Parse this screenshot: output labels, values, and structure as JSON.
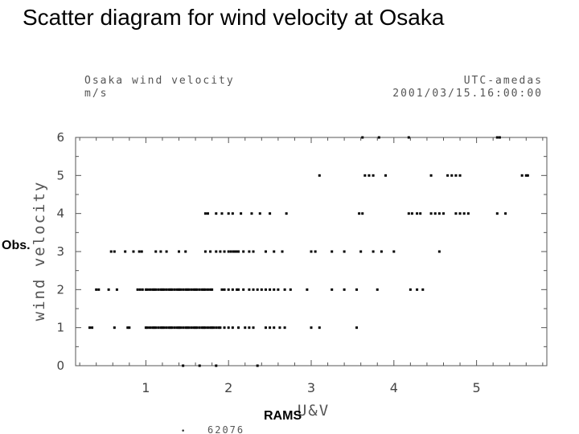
{
  "slide": {
    "title": "Scatter diagram for wind velocity at Osaka"
  },
  "header": {
    "left_line1": "Osaka wind velocity",
    "left_line2": "m/s",
    "right_line1": "UTC-amedas",
    "right_line2": "2001/03/15.16:00:00"
  },
  "labels": {
    "ylabel_plot": "wind velocity",
    "xlabel_plot": "U&V",
    "ylabel_overlay": "Obs.",
    "xlabel_overlay": "RAMS",
    "count_marker": "•",
    "count_text": "62076"
  },
  "chart_data": {
    "type": "scatter",
    "xlim": [
      0.15,
      5.85
    ],
    "ylim": [
      0,
      6
    ],
    "xticks": [
      "1",
      "2",
      "3",
      "4",
      "5"
    ],
    "yticks": [
      "0",
      "1",
      "2",
      "3",
      "4",
      "5",
      "6"
    ],
    "grid": false,
    "points_by_y": [
      {
        "y": 0,
        "x": [
          1.45,
          1.65,
          1.85,
          2.35
        ]
      },
      {
        "y": 1,
        "x": [
          0.32,
          0.35,
          0.62,
          0.78,
          0.8,
          1.0,
          1.02,
          1.05,
          1.08,
          1.1,
          1.12,
          1.15,
          1.18,
          1.2,
          1.22,
          1.25,
          1.28,
          1.3,
          1.32,
          1.35,
          1.38,
          1.4,
          1.42,
          1.45,
          1.48,
          1.5,
          1.52,
          1.55,
          1.58,
          1.6,
          1.62,
          1.65,
          1.68,
          1.7,
          1.72,
          1.75,
          1.78,
          1.8,
          1.82,
          1.85,
          1.88,
          1.9,
          1.95,
          2.0,
          2.05,
          2.12,
          2.2,
          2.25,
          2.3,
          2.45,
          2.5,
          2.55,
          2.62,
          2.68,
          3.0,
          3.1,
          3.55
        ]
      },
      {
        "y": 2,
        "x": [
          0.4,
          0.43,
          0.55,
          0.65,
          0.9,
          0.93,
          0.96,
          1.0,
          1.02,
          1.05,
          1.08,
          1.1,
          1.12,
          1.15,
          1.18,
          1.2,
          1.22,
          1.25,
          1.28,
          1.3,
          1.32,
          1.35,
          1.38,
          1.4,
          1.42,
          1.45,
          1.48,
          1.5,
          1.52,
          1.55,
          1.58,
          1.6,
          1.62,
          1.65,
          1.68,
          1.7,
          1.72,
          1.75,
          1.78,
          1.8,
          1.92,
          1.95,
          2.0,
          2.05,
          2.1,
          2.12,
          2.18,
          2.25,
          2.3,
          2.35,
          2.4,
          2.45,
          2.5,
          2.55,
          2.6,
          2.68,
          2.75,
          2.95,
          3.25,
          3.4,
          3.55,
          3.8,
          4.2,
          4.28,
          4.35
        ]
      },
      {
        "y": 3,
        "x": [
          0.58,
          0.62,
          0.75,
          0.85,
          0.92,
          0.95,
          1.12,
          1.18,
          1.25,
          1.4,
          1.48,
          1.72,
          1.78,
          1.85,
          1.9,
          1.95,
          2.0,
          2.03,
          2.06,
          2.08,
          2.1,
          2.12,
          2.18,
          2.25,
          2.3,
          2.45,
          2.55,
          2.65,
          3.0,
          3.05,
          3.25,
          3.4,
          3.6,
          3.75,
          3.85,
          4.0,
          4.55
        ]
      },
      {
        "y": 4,
        "x": [
          1.72,
          1.75,
          1.85,
          1.92,
          2.0,
          2.05,
          2.15,
          2.28,
          2.38,
          2.5,
          2.7,
          3.58,
          3.62,
          4.18,
          4.22,
          4.28,
          4.32,
          4.45,
          4.5,
          4.55,
          4.6,
          4.75,
          4.8,
          4.85,
          4.9,
          5.25,
          5.35
        ]
      },
      {
        "y": 5,
        "x": [
          3.1,
          3.65,
          3.7,
          3.75,
          3.9,
          4.45,
          4.65,
          4.7,
          4.75,
          4.8,
          5.55,
          5.6,
          5.62
        ]
      },
      {
        "y": 6,
        "x": [
          3.62,
          3.82,
          4.18,
          5.25,
          5.28
        ]
      }
    ]
  }
}
